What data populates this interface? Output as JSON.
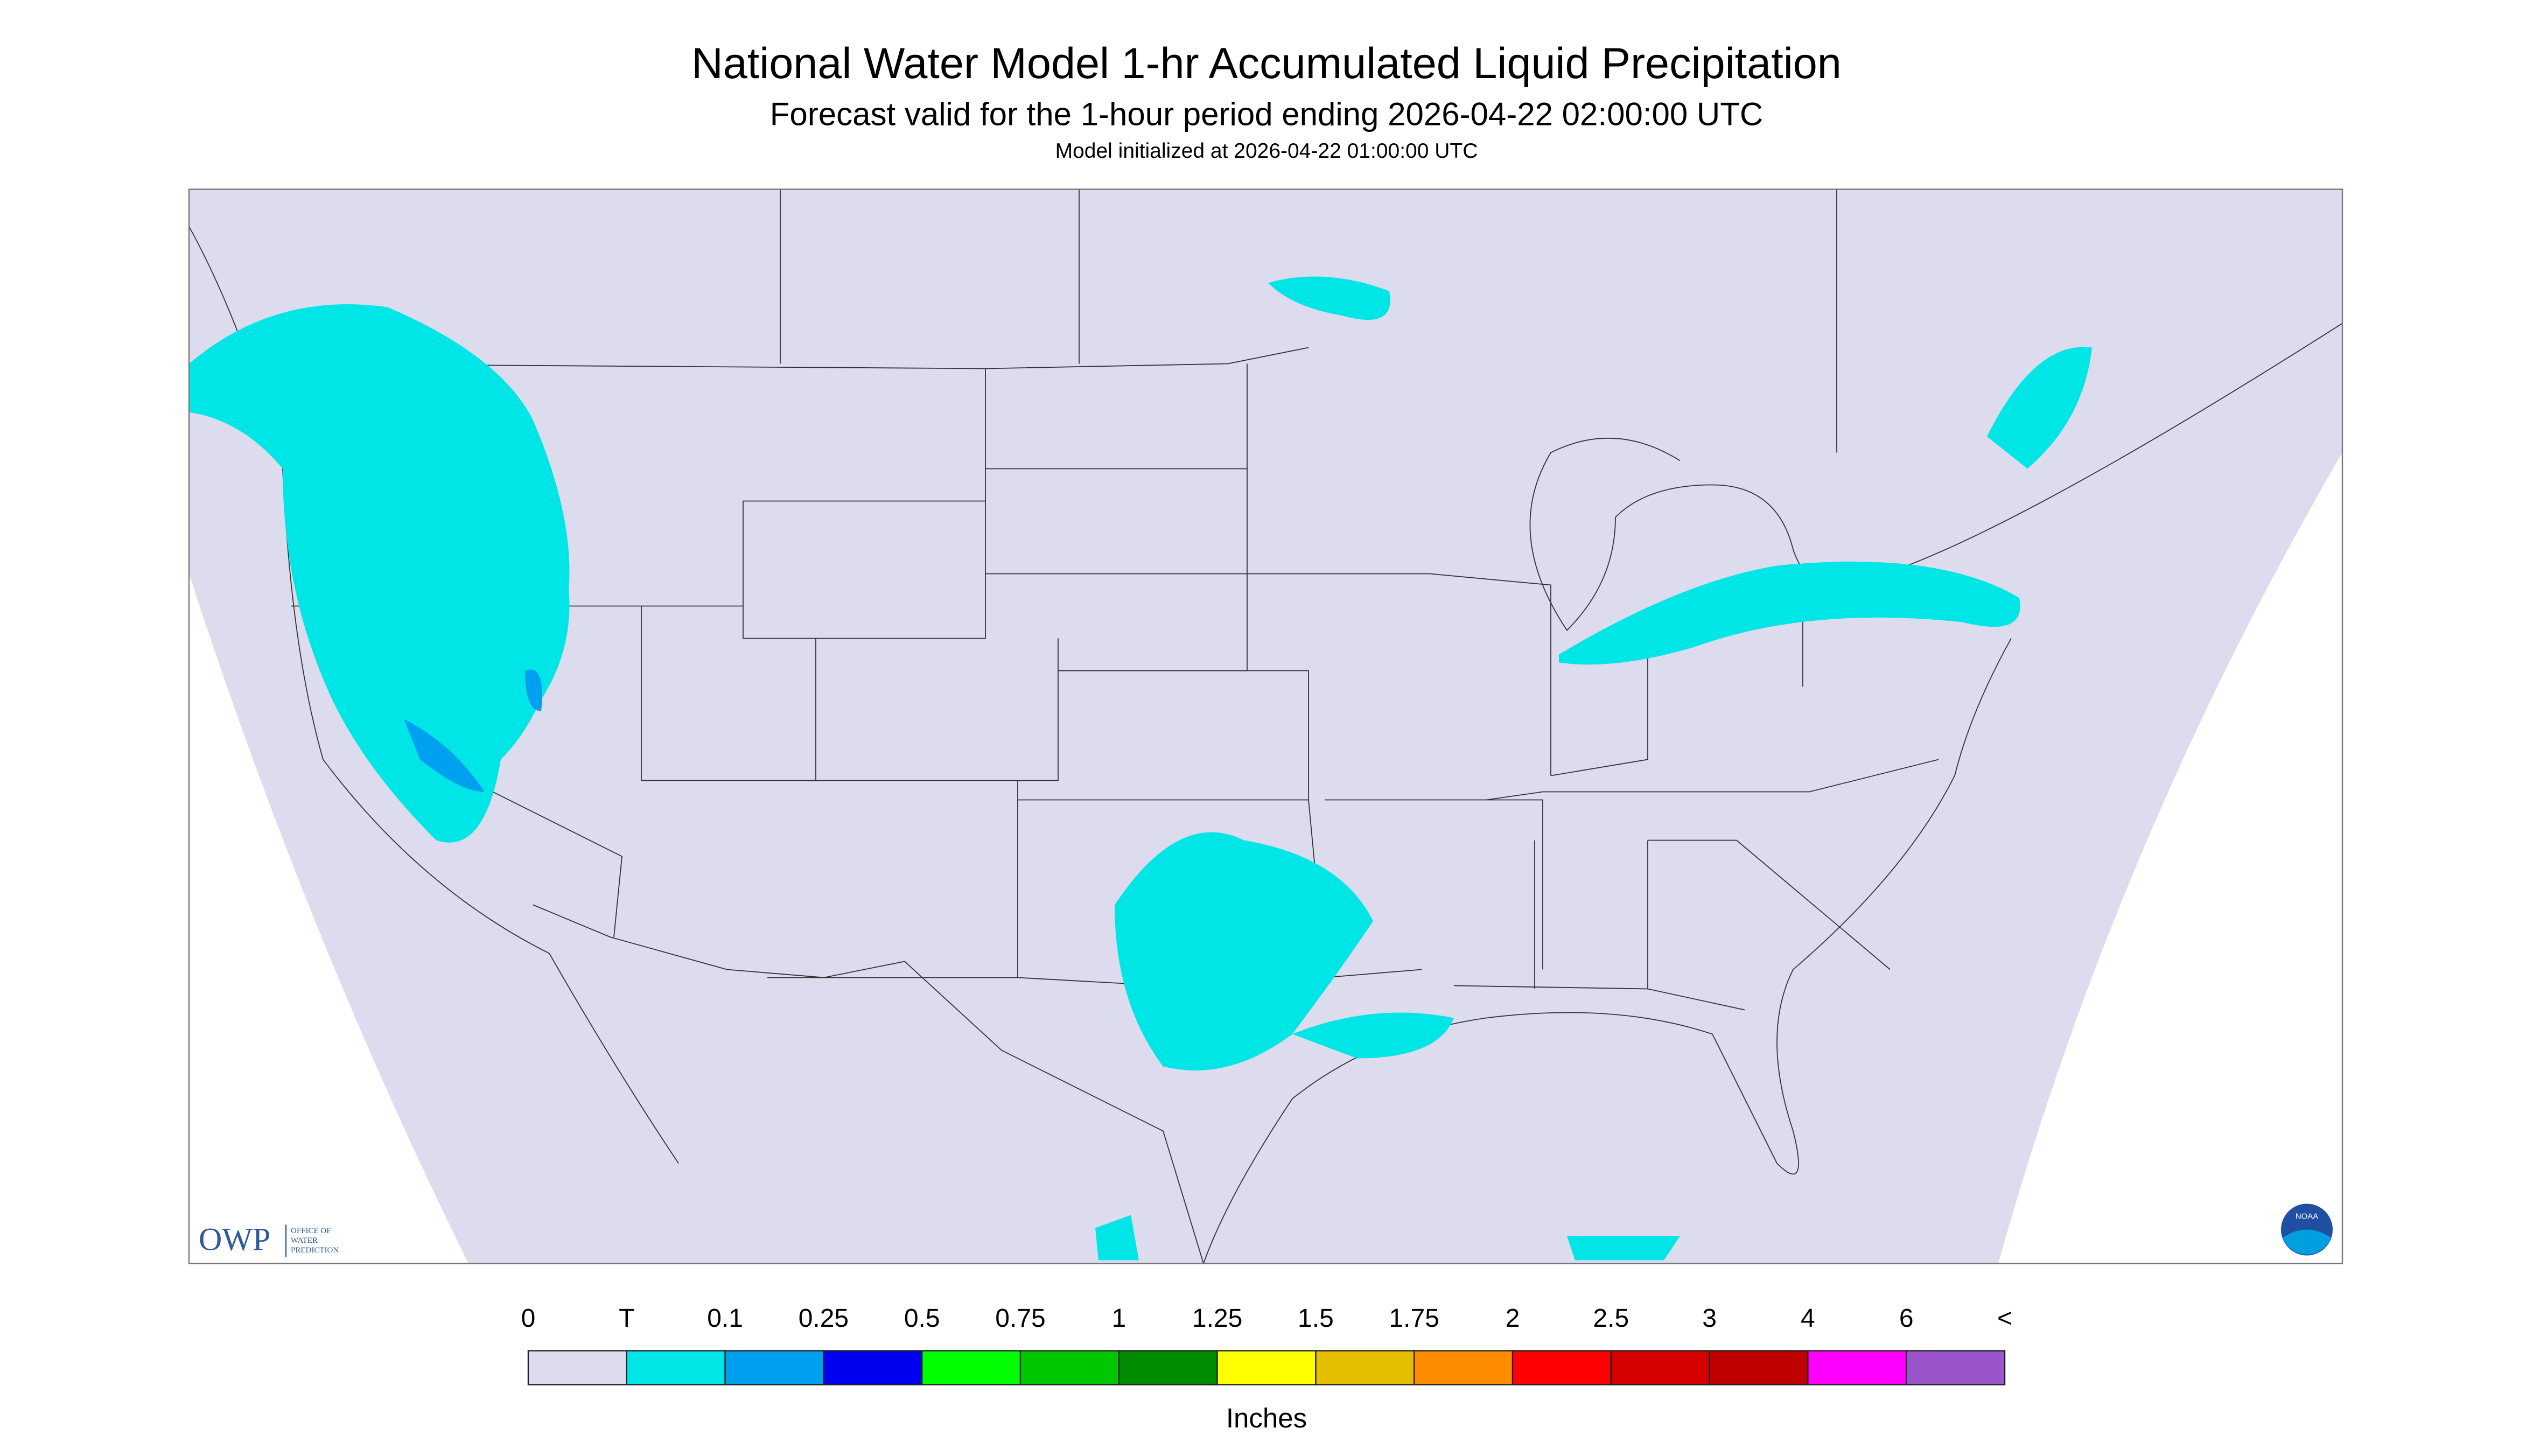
{
  "header": {
    "title": "National Water Model 1-hr Accumulated Liquid Precipitation",
    "subtitle": "Forecast valid for the 1-hour period ending 2026-04-22 02:00:00 UTC",
    "note": "Model initialized at 2026-04-22 01:00:00 UTC"
  },
  "legend": {
    "labels": [
      "0",
      "T",
      "0.1",
      "0.25",
      "0.5",
      "0.75",
      "1",
      "1.25",
      "1.5",
      "1.75",
      "2",
      "2.5",
      "3",
      "4",
      "6",
      "<"
    ],
    "colors": [
      "#dcdcee",
      "#00e6e6",
      "#00a0f0",
      "#0000f0",
      "#00ff00",
      "#00c800",
      "#008c00",
      "#ffff00",
      "#e6be00",
      "#ff8c00",
      "#ff0000",
      "#d60000",
      "#c00000",
      "#ff00ff",
      "#9955c9"
    ],
    "unit": "Inches"
  },
  "logos": {
    "owp": "OWP",
    "owp_full": [
      "OFFICE OF",
      "WATER",
      "PREDICTION"
    ],
    "noaa": "NOAA"
  }
}
